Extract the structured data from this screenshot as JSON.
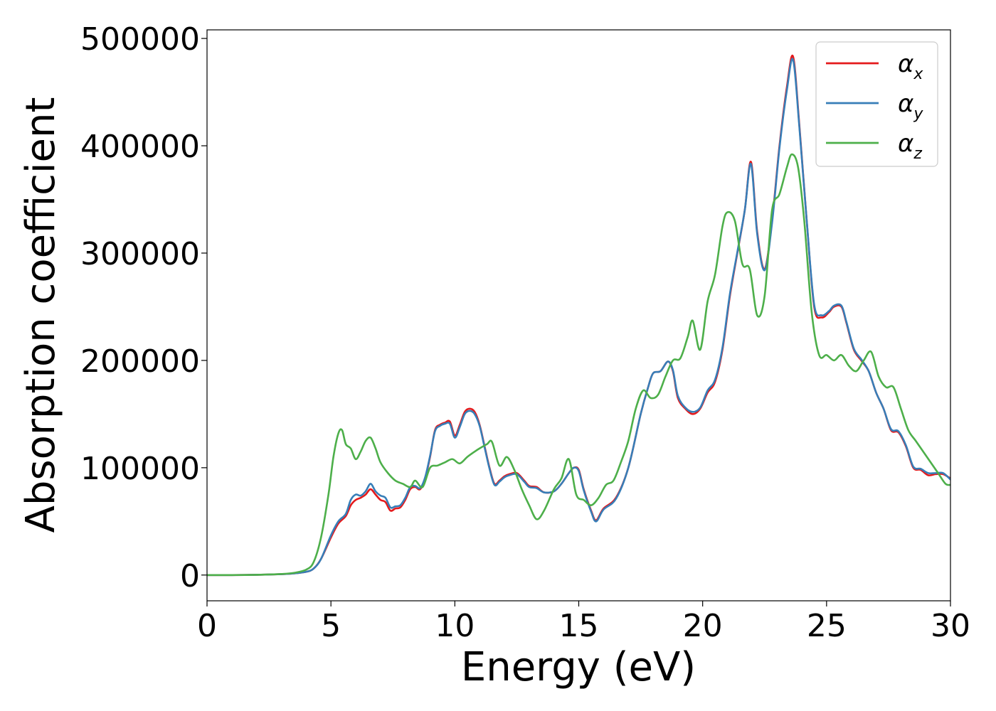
{
  "chart_data": {
    "type": "line",
    "title": "",
    "xlabel": "Energy (eV)",
    "ylabel": "Absorption coefficient",
    "xlim": [
      0,
      30
    ],
    "ylim": [
      -24000,
      508000
    ],
    "xticks": [
      "0",
      "5",
      "10",
      "15",
      "20",
      "25",
      "30"
    ],
    "yticks": [
      "0",
      "100000",
      "200000",
      "300000",
      "400000",
      "500000"
    ],
    "grid": false,
    "legend_position": "top-right",
    "series": [
      {
        "name": "αx",
        "legend_base": "α",
        "legend_sub": "x",
        "color": "#e41a1c",
        "x": [
          0,
          1,
          2,
          3,
          3.5,
          4.0,
          4.3,
          4.6,
          5.0,
          5.3,
          5.6,
          5.8,
          6.0,
          6.2,
          6.4,
          6.6,
          6.8,
          7.0,
          7.2,
          7.4,
          7.6,
          7.8,
          8.0,
          8.2,
          8.4,
          8.6,
          8.8,
          9.0,
          9.2,
          9.4,
          9.6,
          9.8,
          10.0,
          10.2,
          10.4,
          10.6,
          10.8,
          11.0,
          11.2,
          11.4,
          11.6,
          11.8,
          12.0,
          12.2,
          12.5,
          12.8,
          13.0,
          13.3,
          13.6,
          14.0,
          14.3,
          14.6,
          14.8,
          15.0,
          15.2,
          15.5,
          15.7,
          16.0,
          16.5,
          17.0,
          17.5,
          17.8,
          18.0,
          18.3,
          18.6,
          18.8,
          19.0,
          19.3,
          19.6,
          19.9,
          20.2,
          20.5,
          20.8,
          21.1,
          21.4,
          21.7,
          21.95,
          22.2,
          22.5,
          22.8,
          23.1,
          23.4,
          23.65,
          23.9,
          24.2,
          24.5,
          24.8,
          25.1,
          25.3,
          25.6,
          25.8,
          26.1,
          26.4,
          26.7,
          27.0,
          27.3,
          27.6,
          27.9,
          28.2,
          28.5,
          28.8,
          29.1,
          29.4,
          29.7,
          30.0
        ],
        "y": [
          0,
          0,
          200,
          800,
          1500,
          3000,
          6000,
          15000,
          35000,
          48000,
          55000,
          65000,
          70000,
          72000,
          75000,
          80000,
          75000,
          70000,
          68000,
          60000,
          62000,
          63000,
          70000,
          80000,
          82000,
          80000,
          90000,
          110000,
          135000,
          140000,
          142000,
          143000,
          130000,
          140000,
          152000,
          155000,
          152000,
          140000,
          120000,
          100000,
          85000,
          88000,
          92000,
          94000,
          95000,
          88000,
          83000,
          82000,
          77000,
          78000,
          85000,
          95000,
          100000,
          98000,
          80000,
          60000,
          51000,
          62000,
          72000,
          100000,
          150000,
          175000,
          188000,
          190000,
          199000,
          190000,
          165000,
          155000,
          150000,
          155000,
          170000,
          180000,
          210000,
          260000,
          300000,
          340000,
          385000,
          320000,
          285000,
          330000,
          400000,
          455000,
          483000,
          420000,
          330000,
          250000,
          240000,
          245000,
          250000,
          250000,
          235000,
          210000,
          200000,
          190000,
          170000,
          155000,
          135000,
          133000,
          120000,
          100000,
          98000,
          93000,
          94000,
          94000,
          90000
        ]
      },
      {
        "name": "αy",
        "legend_base": "α",
        "legend_sub": "y",
        "color": "#377eb8",
        "x": [
          0,
          1,
          2,
          3,
          3.5,
          4.0,
          4.3,
          4.6,
          5.0,
          5.3,
          5.6,
          5.8,
          6.0,
          6.2,
          6.4,
          6.6,
          6.8,
          7.0,
          7.2,
          7.4,
          7.6,
          7.8,
          8.0,
          8.2,
          8.4,
          8.6,
          8.8,
          9.0,
          9.2,
          9.4,
          9.6,
          9.8,
          10.0,
          10.2,
          10.4,
          10.6,
          10.8,
          11.0,
          11.2,
          11.4,
          11.6,
          11.8,
          12.0,
          12.2,
          12.5,
          12.8,
          13.0,
          13.3,
          13.6,
          14.0,
          14.3,
          14.6,
          14.8,
          15.0,
          15.2,
          15.5,
          15.7,
          16.0,
          16.5,
          17.0,
          17.5,
          17.8,
          18.0,
          18.3,
          18.6,
          18.8,
          19.0,
          19.3,
          19.6,
          19.9,
          20.2,
          20.5,
          20.8,
          21.1,
          21.4,
          21.7,
          21.95,
          22.2,
          22.5,
          22.8,
          23.1,
          23.4,
          23.65,
          23.9,
          24.2,
          24.5,
          24.8,
          25.1,
          25.3,
          25.6,
          25.8,
          26.1,
          26.4,
          26.7,
          27.0,
          27.3,
          27.6,
          27.9,
          28.2,
          28.5,
          28.8,
          29.1,
          29.4,
          29.7,
          30.0
        ],
        "y": [
          0,
          0,
          200,
          800,
          1500,
          3000,
          6000,
          15000,
          37000,
          50000,
          57000,
          70000,
          75000,
          74000,
          78000,
          85000,
          78000,
          74000,
          72000,
          63000,
          64000,
          65000,
          72000,
          82000,
          83000,
          81000,
          91000,
          111000,
          134000,
          139000,
          141000,
          141000,
          128000,
          138000,
          150000,
          153000,
          150000,
          139000,
          119000,
          99000,
          84000,
          87000,
          91000,
          93000,
          94000,
          87000,
          82000,
          81000,
          77000,
          78000,
          85000,
          95000,
          100000,
          97000,
          79000,
          59000,
          50000,
          61000,
          71000,
          100000,
          150000,
          175000,
          188000,
          190000,
          199000,
          191000,
          167000,
          156000,
          152000,
          156000,
          172000,
          182000,
          212000,
          262000,
          301000,
          340000,
          383000,
          318000,
          284000,
          328000,
          398000,
          452000,
          480000,
          418000,
          330000,
          252000,
          242000,
          246000,
          251000,
          251000,
          236000,
          211000,
          201000,
          190000,
          170000,
          155000,
          136000,
          134000,
          121000,
          101000,
          99000,
          95000,
          95000,
          95000,
          89000
        ]
      },
      {
        "name": "αz",
        "legend_base": "α",
        "legend_sub": "z",
        "color": "#4daf4a",
        "x": [
          0,
          1,
          2,
          3,
          3.5,
          4.0,
          4.3,
          4.6,
          4.9,
          5.1,
          5.3,
          5.45,
          5.6,
          5.8,
          6.0,
          6.2,
          6.4,
          6.6,
          6.8,
          7.0,
          7.3,
          7.6,
          7.9,
          8.2,
          8.4,
          8.7,
          9.0,
          9.3,
          9.6,
          9.9,
          10.2,
          10.5,
          10.8,
          11.0,
          11.3,
          11.5,
          11.8,
          12.1,
          12.4,
          12.7,
          13.0,
          13.3,
          13.6,
          14.0,
          14.3,
          14.6,
          14.9,
          15.2,
          15.5,
          15.8,
          16.1,
          16.4,
          16.7,
          17.0,
          17.3,
          17.6,
          17.9,
          18.2,
          18.5,
          18.8,
          19.1,
          19.4,
          19.6,
          19.9,
          20.2,
          20.5,
          20.8,
          21.0,
          21.3,
          21.6,
          21.9,
          22.2,
          22.5,
          22.8,
          23.1,
          23.4,
          23.6,
          23.85,
          24.1,
          24.4,
          24.7,
          25.0,
          25.3,
          25.6,
          25.9,
          26.2,
          26.5,
          26.8,
          27.1,
          27.4,
          27.7,
          28.0,
          28.3,
          28.6,
          28.9,
          29.2,
          29.5,
          29.8,
          30.0
        ],
        "y": [
          0,
          0,
          200,
          1000,
          2000,
          5000,
          12000,
          35000,
          75000,
          110000,
          132000,
          135000,
          122000,
          118000,
          108000,
          115000,
          125000,
          128000,
          118000,
          105000,
          95000,
          88000,
          85000,
          82000,
          88000,
          82000,
          100000,
          102000,
          105000,
          108000,
          104000,
          110000,
          115000,
          118000,
          122000,
          124000,
          102000,
          110000,
          98000,
          80000,
          65000,
          52000,
          60000,
          80000,
          90000,
          108000,
          75000,
          70000,
          65000,
          72000,
          84000,
          88000,
          105000,
          125000,
          155000,
          172000,
          165000,
          168000,
          185000,
          200000,
          202000,
          222000,
          237000,
          210000,
          255000,
          280000,
          325000,
          338000,
          330000,
          290000,
          285000,
          242000,
          260000,
          340000,
          355000,
          380000,
          392000,
          380000,
          330000,
          245000,
          205000,
          205000,
          200000,
          205000,
          195000,
          190000,
          200000,
          208000,
          185000,
          175000,
          175000,
          155000,
          135000,
          125000,
          115000,
          105000,
          95000,
          85000,
          84000
        ]
      }
    ]
  }
}
